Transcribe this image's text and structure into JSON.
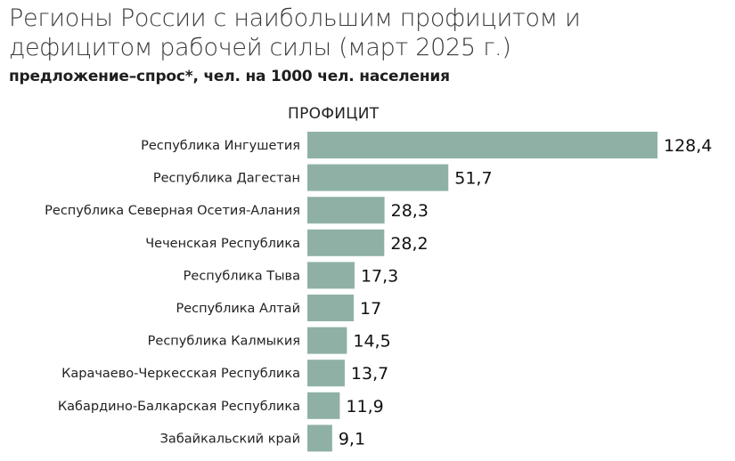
{
  "header": {
    "title": "Регионы России с наибольшим профицитом и дефицитом рабочей силы (март 2025 г.)",
    "subtitle": "предложение–спрос*, чел. на 1000 чел. населения"
  },
  "chart_data": {
    "type": "bar",
    "orientation": "horizontal",
    "section_label": "ПРОФИЦИТ",
    "categories": [
      "Республика Ингушетия",
      "Республика Дагестан",
      "Республика Северная Осетия-Алания",
      "Чеченская Республика",
      "Республика Тыва",
      "Республика Алтай",
      "Республика Калмыкия",
      "Карачаево-Черкесская Республика",
      "Кабардино-Балкарская Республика",
      "Забайкальский край"
    ],
    "values": [
      128.4,
      51.7,
      28.3,
      28.2,
      17.3,
      17,
      14.5,
      13.7,
      11.9,
      9.1
    ],
    "value_labels": [
      "128,4",
      "51,7",
      "28,3",
      "28,2",
      "17,3",
      "17",
      "14,5",
      "13,7",
      "11,9",
      "9,1"
    ],
    "bar_color": "#8fb1a5",
    "xlim": [
      0,
      128.4
    ],
    "grid": false,
    "legend": "none"
  }
}
